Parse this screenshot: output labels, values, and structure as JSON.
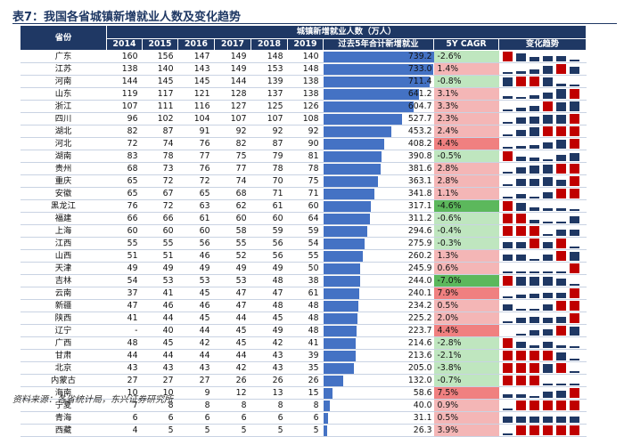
{
  "title": "表7：我国各省城镇新增就业人数及变化趋势",
  "source": "资料来源：各省统计局，东兴证券研究所",
  "header": {
    "province": "省份",
    "group": "城镇新增就业人数（万人）",
    "years": [
      "2014",
      "2015",
      "2016",
      "2017",
      "2018",
      "2019"
    ],
    "sum": "过去5年合计新增就业",
    "cagr": "5Y CAGR",
    "trend": "变化趋势"
  },
  "colors": {
    "header": "#1f3864",
    "bar": "#4472c4",
    "mark": "#1f3864",
    "max_mark": "#c00000",
    "min_mark": "#1f3864",
    "pos": "#f4b6b6",
    "neg": "#bfe6bf",
    "strong_pos": "#f08080",
    "strong_neg": "#5cb85c"
  },
  "rows": [
    {
      "province": "广东",
      "v": [
        "160",
        "156",
        "147",
        "149",
        "148",
        "140"
      ],
      "sum": "739.2",
      "cagr": "-2.6%",
      "sign": "neg",
      "strong": false
    },
    {
      "province": "江苏",
      "v": [
        "138",
        "140",
        "143",
        "149",
        "153",
        "148"
      ],
      "sum": "733.0",
      "cagr": "1.4%",
      "sign": "pos",
      "strong": false
    },
    {
      "province": "河南",
      "v": [
        "144",
        "145",
        "145",
        "144",
        "139",
        "138"
      ],
      "sum": "711.4",
      "cagr": "-0.8%",
      "sign": "neg",
      "strong": false
    },
    {
      "province": "山东",
      "v": [
        "119",
        "117",
        "121",
        "128",
        "137",
        "138"
      ],
      "sum": "641.2",
      "cagr": "3.1%",
      "sign": "pos",
      "strong": false
    },
    {
      "province": "浙江",
      "v": [
        "107",
        "111",
        "116",
        "127",
        "125",
        "126"
      ],
      "sum": "604.7",
      "cagr": "3.3%",
      "sign": "pos",
      "strong": false
    },
    {
      "province": "四川",
      "v": [
        "96",
        "102",
        "104",
        "107",
        "107",
        "108"
      ],
      "sum": "527.7",
      "cagr": "2.3%",
      "sign": "pos",
      "strong": false
    },
    {
      "province": "湖北",
      "v": [
        "82",
        "87",
        "91",
        "92",
        "92",
        "92"
      ],
      "sum": "453.2",
      "cagr": "2.4%",
      "sign": "pos",
      "strong": false
    },
    {
      "province": "河北",
      "v": [
        "72",
        "74",
        "76",
        "82",
        "87",
        "90"
      ],
      "sum": "408.2",
      "cagr": "4.4%",
      "sign": "pos",
      "strong": true
    },
    {
      "province": "湖南",
      "v": [
        "83",
        "78",
        "77",
        "75",
        "79",
        "81"
      ],
      "sum": "390.8",
      "cagr": "-0.5%",
      "sign": "neg",
      "strong": false
    },
    {
      "province": "贵州",
      "v": [
        "68",
        "73",
        "76",
        "77",
        "78",
        "78"
      ],
      "sum": "381.6",
      "cagr": "2.8%",
      "sign": "pos",
      "strong": false
    },
    {
      "province": "重庆",
      "v": [
        "65",
        "72",
        "72",
        "74",
        "70",
        "75"
      ],
      "sum": "363.1",
      "cagr": "2.8%",
      "sign": "pos",
      "strong": false
    },
    {
      "province": "安徽",
      "v": [
        "65",
        "67",
        "65",
        "68",
        "71",
        "71"
      ],
      "sum": "341.8",
      "cagr": "1.1%",
      "sign": "pos",
      "strong": false
    },
    {
      "province": "黑龙江",
      "v": [
        "76",
        "72",
        "63",
        "62",
        "61",
        "60"
      ],
      "sum": "317.1",
      "cagr": "-4.6%",
      "sign": "neg",
      "strong": true
    },
    {
      "province": "福建",
      "v": [
        "66",
        "66",
        "61",
        "60",
        "60",
        "64"
      ],
      "sum": "311.2",
      "cagr": "-0.6%",
      "sign": "neg",
      "strong": false
    },
    {
      "province": "上海",
      "v": [
        "60",
        "60",
        "60",
        "58",
        "59",
        "59"
      ],
      "sum": "294.6",
      "cagr": "-0.4%",
      "sign": "neg",
      "strong": false
    },
    {
      "province": "江西",
      "v": [
        "55",
        "55",
        "56",
        "55",
        "56",
        "54"
      ],
      "sum": "275.9",
      "cagr": "-0.3%",
      "sign": "neg",
      "strong": false
    },
    {
      "province": "山西",
      "v": [
        "51",
        "51",
        "46",
        "52",
        "56",
        "55"
      ],
      "sum": "260.2",
      "cagr": "1.3%",
      "sign": "pos",
      "strong": false
    },
    {
      "province": "天津",
      "v": [
        "49",
        "49",
        "49",
        "49",
        "49",
        "50"
      ],
      "sum": "245.9",
      "cagr": "0.6%",
      "sign": "pos",
      "strong": false
    },
    {
      "province": "吉林",
      "v": [
        "54",
        "53",
        "53",
        "53",
        "48",
        "38"
      ],
      "sum": "244.0",
      "cagr": "-7.0%",
      "sign": "neg",
      "strong": true
    },
    {
      "province": "云南",
      "v": [
        "37",
        "41",
        "45",
        "47",
        "47",
        "61"
      ],
      "sum": "240.1",
      "cagr": "7.9%",
      "sign": "pos",
      "strong": true
    },
    {
      "province": "新疆",
      "v": [
        "47",
        "46",
        "46",
        "47",
        "48",
        "48"
      ],
      "sum": "234.2",
      "cagr": "0.5%",
      "sign": "pos",
      "strong": false
    },
    {
      "province": "陕西",
      "v": [
        "41",
        "44",
        "45",
        "44",
        "45",
        "48"
      ],
      "sum": "225.2",
      "cagr": "2.0%",
      "sign": "pos",
      "strong": false
    },
    {
      "province": "辽宁",
      "v": [
        "-",
        "40",
        "44",
        "45",
        "49",
        "48"
      ],
      "sum": "223.7",
      "cagr": "4.4%",
      "sign": "pos",
      "strong": true
    },
    {
      "province": "广西",
      "v": [
        "48",
        "45",
        "42",
        "45",
        "42",
        "41"
      ],
      "sum": "214.6",
      "cagr": "-2.8%",
      "sign": "neg",
      "strong": false
    },
    {
      "province": "甘肃",
      "v": [
        "44",
        "44",
        "44",
        "44",
        "43",
        "39"
      ],
      "sum": "213.6",
      "cagr": "-2.1%",
      "sign": "neg",
      "strong": false
    },
    {
      "province": "北京",
      "v": [
        "43",
        "43",
        "43",
        "42",
        "43",
        "35"
      ],
      "sum": "205.0",
      "cagr": "-3.8%",
      "sign": "neg",
      "strong": false
    },
    {
      "province": "内蒙古",
      "v": [
        "27",
        "27",
        "27",
        "26",
        "26",
        "26"
      ],
      "sum": "132.0",
      "cagr": "-0.7%",
      "sign": "neg",
      "strong": false
    },
    {
      "province": "海南",
      "v": [
        "10",
        "10",
        "9",
        "12",
        "13",
        "15"
      ],
      "sum": "58.6",
      "cagr": "7.5%",
      "sign": "pos",
      "strong": true
    },
    {
      "province": "宁夏",
      "v": [
        "7",
        "8",
        "8",
        "8",
        "8",
        "8"
      ],
      "sum": "40.0",
      "cagr": "0.9%",
      "sign": "pos",
      "strong": false
    },
    {
      "province": "青海",
      "v": [
        "6",
        "6",
        "6",
        "6",
        "6",
        "6"
      ],
      "sum": "31.1",
      "cagr": "0.5%",
      "sign": "pos",
      "strong": false
    },
    {
      "province": "西藏",
      "v": [
        "4",
        "5",
        "5",
        "5",
        "5",
        "5"
      ],
      "sum": "26.3",
      "cagr": "3.9%",
      "sign": "pos",
      "strong": false
    }
  ],
  "chart_data": {
    "type": "bar",
    "title": "过去5年合计新增就业",
    "categories": [
      "广东",
      "江苏",
      "河南",
      "山东",
      "浙江",
      "四川",
      "湖北",
      "河北",
      "湖南",
      "贵州",
      "重庆",
      "安徽",
      "黑龙江",
      "福建",
      "上海",
      "江西",
      "山西",
      "天津",
      "吉林",
      "云南",
      "新疆",
      "陕西",
      "辽宁",
      "广西",
      "甘肃",
      "北京",
      "内蒙古",
      "海南",
      "宁夏",
      "青海",
      "西藏"
    ],
    "values": [
      739.2,
      733.0,
      711.4,
      641.2,
      604.7,
      527.7,
      453.2,
      408.2,
      390.8,
      381.6,
      363.1,
      341.8,
      317.1,
      311.2,
      294.6,
      275.9,
      260.2,
      245.9,
      244.0,
      240.1,
      234.2,
      225.2,
      223.7,
      214.6,
      213.6,
      205.0,
      132.0,
      58.6,
      40.0,
      31.1,
      26.3
    ],
    "xlim": [
      0,
      740
    ],
    "orientation": "horizontal",
    "xlabel": "",
    "ylabel": ""
  }
}
